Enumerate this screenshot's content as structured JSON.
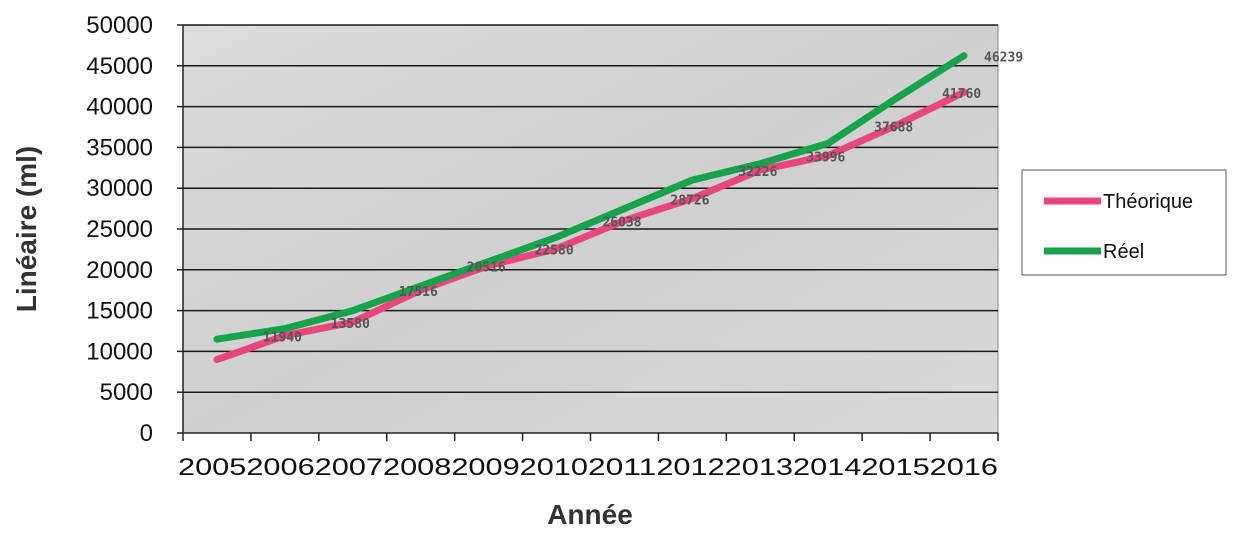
{
  "chart_data": {
    "type": "line",
    "categories": [
      "2005",
      "2006",
      "2007",
      "2008",
      "2009",
      "2010",
      "2011",
      "2012",
      "2013",
      "2014",
      "2015",
      "2016"
    ],
    "series": [
      {
        "name": "Théorique",
        "color": "#e8467c",
        "values": [
          9000,
          11940,
          13580,
          17516,
          20516,
          22580,
          26038,
          28726,
          32226,
          33996,
          37688,
          41760
        ]
      },
      {
        "name": "Réel",
        "color": "#16a34a",
        "values": [
          11500,
          12800,
          15000,
          18000,
          21000,
          24000,
          27500,
          31000,
          33000,
          35500,
          41000,
          46239
        ]
      }
    ],
    "data_labels": [
      "",
      "11940",
      "13580",
      "17516",
      "20516",
      "22580",
      "26038",
      "28726",
      "32226",
      "33996",
      "37688",
      "41760"
    ],
    "final_real_label": "46239",
    "xlabel": "Année",
    "ylabel": "Linéaire (ml)",
    "ylim": [
      0,
      50000
    ],
    "yticks": [
      "0",
      "5000",
      "10000",
      "15000",
      "20000",
      "25000",
      "30000",
      "35000",
      "40000",
      "45000",
      "50000"
    ],
    "grid": true,
    "legend_position": "right"
  }
}
